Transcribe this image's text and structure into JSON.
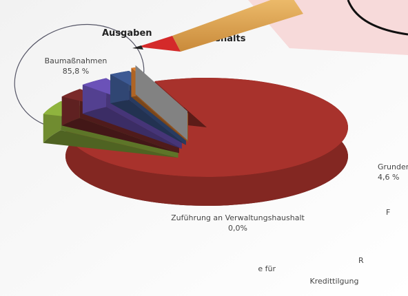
{
  "chart_data": {
    "type": "pie",
    "title": "Ausgaben",
    "title_rest": "nshaushalts",
    "categories": [
      "Baumaßnahmen",
      "Grunderwe",
      "F",
      "R",
      "Kredittilgung",
      "e für",
      "Zuführung an Verwaltungshaushalt"
    ],
    "values": [
      85.8,
      4.6,
      3.2,
      3.4,
      2.4,
      0.6,
      0.0
    ],
    "value_labels": [
      "85,8 %",
      "4,6 %",
      null,
      null,
      null,
      null,
      "0,0%"
    ],
    "colors": [
      "#a8322c",
      "#8fb43e",
      "#7a2a2a",
      "#6b52b8",
      "#3d5a94",
      "#e0802e",
      "#c8c8c8"
    ]
  }
}
